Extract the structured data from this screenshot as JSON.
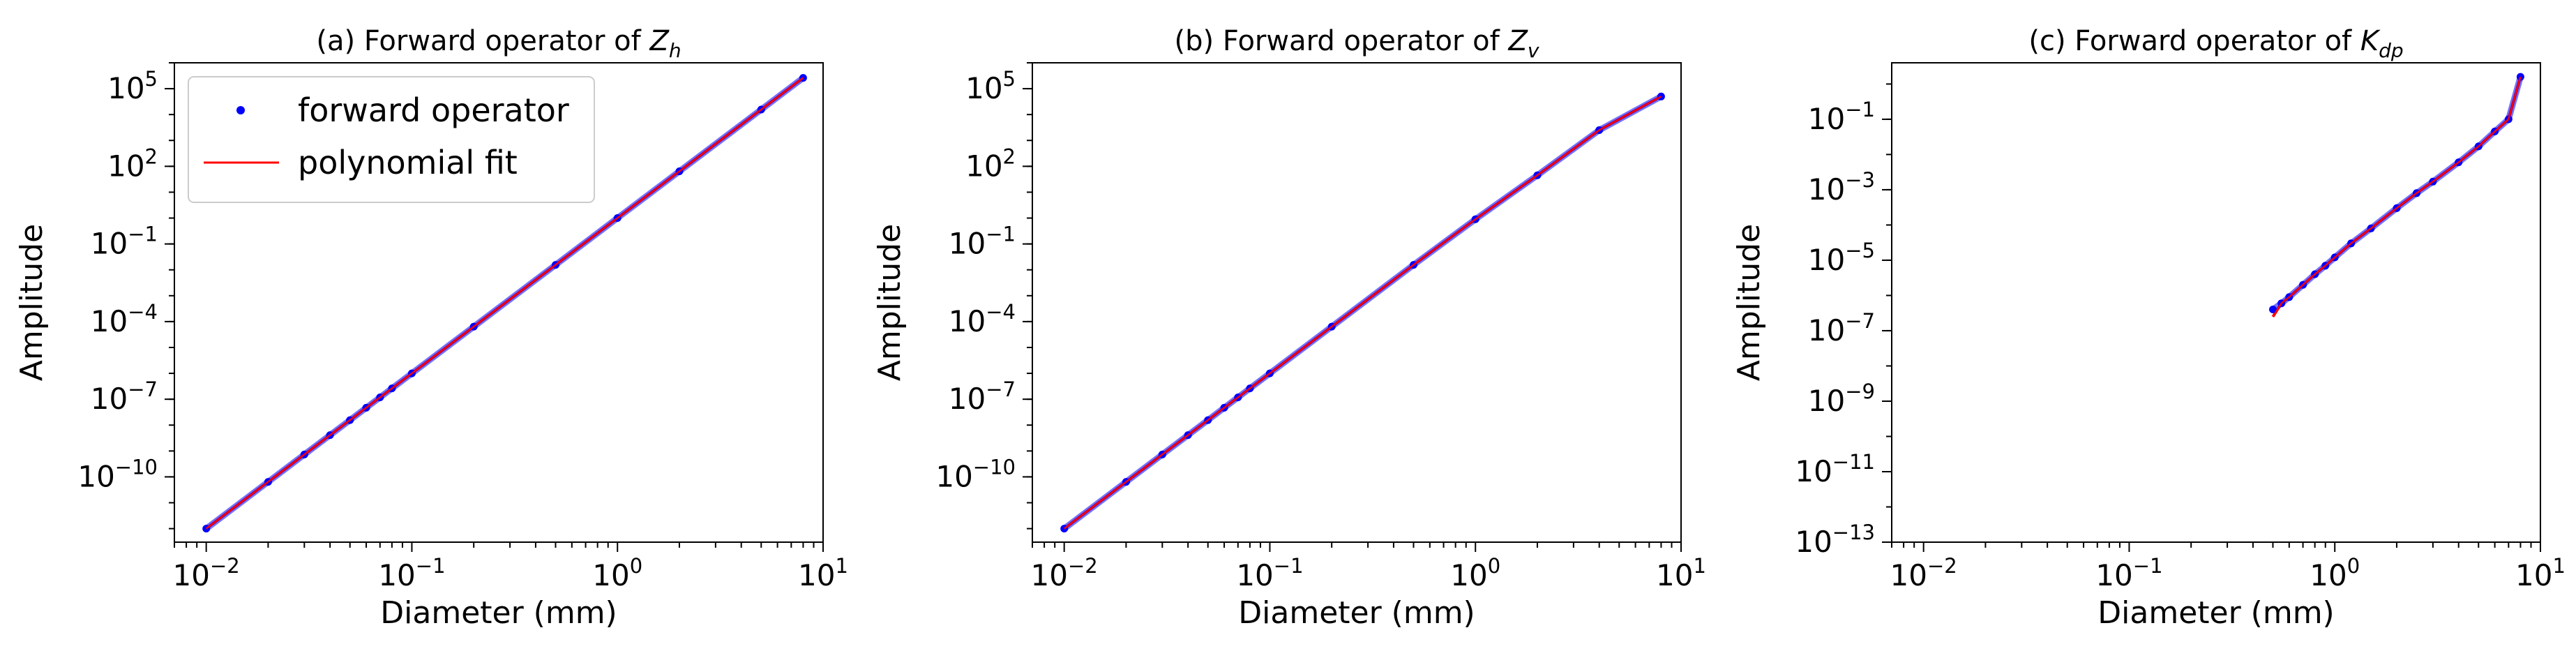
{
  "colors": {
    "marker": "#0000ff",
    "fit_line": "#ff0000",
    "axes": "#000000",
    "background": "#ffffff"
  },
  "legend": {
    "placement": "top-left",
    "entries": [
      {
        "label": "forward operator",
        "style": "dots",
        "color": "#0000ff"
      },
      {
        "label": "polynomial fit",
        "style": "line",
        "color": "#ff0000"
      }
    ]
  },
  "chart_data": [
    {
      "type": "scatter",
      "title": {
        "prefix": "(a) Forward operator of ",
        "symbol": "Z",
        "subscript": "h"
      },
      "xlabel": "Diameter (mm)",
      "ylabel": "Amplitude",
      "xscale": "log",
      "yscale": "log",
      "xlim": [
        0.007,
        10
      ],
      "ylim": [
        3e-13,
        1000000.0
      ],
      "xticks": [
        {
          "base": "10",
          "exp": "−2",
          "value": 0.01
        },
        {
          "base": "10",
          "exp": "−1",
          "value": 0.1
        },
        {
          "base": "10",
          "exp": "0",
          "value": 1
        },
        {
          "base": "10",
          "exp": "1",
          "value": 10
        }
      ],
      "yticks": [
        {
          "base": "10",
          "exp": "−10",
          "value": 1e-10
        },
        {
          "base": "10",
          "exp": "−7",
          "value": 1e-07
        },
        {
          "base": "10",
          "exp": "−4",
          "value": 0.0001
        },
        {
          "base": "10",
          "exp": "−1",
          "value": 0.1
        },
        {
          "base": "10",
          "exp": "2",
          "value": 100
        },
        {
          "base": "10",
          "exp": "5",
          "value": 100000
        }
      ],
      "grid": false,
      "legend_shown": true,
      "series": [
        {
          "name": "forward operator",
          "style": "dots",
          "x": [
            0.01,
            0.02,
            0.03,
            0.04,
            0.05,
            0.06,
            0.07,
            0.08,
            0.1,
            0.2,
            0.5,
            1,
            2,
            5,
            8
          ],
          "y": [
            1e-12,
            6.4e-11,
            7.3e-10,
            4.1e-09,
            1.56e-08,
            4.67e-08,
            1.18e-07,
            2.62e-07,
            1e-06,
            6.4e-05,
            0.0156,
            1,
            64,
            15600,
            262000
          ]
        },
        {
          "name": "polynomial fit",
          "style": "line",
          "x": [
            0.01,
            0.02,
            0.03,
            0.04,
            0.05,
            0.06,
            0.07,
            0.08,
            0.1,
            0.2,
            0.5,
            1,
            2,
            5,
            8
          ],
          "y": [
            1e-12,
            6.4e-11,
            7.3e-10,
            4.1e-09,
            1.56e-08,
            4.67e-08,
            1.18e-07,
            2.62e-07,
            1e-06,
            6.4e-05,
            0.0156,
            1,
            64,
            15600,
            262000
          ]
        }
      ]
    },
    {
      "type": "scatter",
      "title": {
        "prefix": "(b) Forward operator of ",
        "symbol": "Z",
        "subscript": "v"
      },
      "xlabel": "Diameter (mm)",
      "ylabel": "Amplitude",
      "xscale": "log",
      "yscale": "log",
      "xlim": [
        0.007,
        10
      ],
      "ylim": [
        3e-13,
        1000000.0
      ],
      "xticks": [
        {
          "base": "10",
          "exp": "−2",
          "value": 0.01
        },
        {
          "base": "10",
          "exp": "−1",
          "value": 0.1
        },
        {
          "base": "10",
          "exp": "0",
          "value": 1
        },
        {
          "base": "10",
          "exp": "1",
          "value": 10
        }
      ],
      "yticks": [
        {
          "base": "10",
          "exp": "−10",
          "value": 1e-10
        },
        {
          "base": "10",
          "exp": "−7",
          "value": 1e-07
        },
        {
          "base": "10",
          "exp": "−4",
          "value": 0.0001
        },
        {
          "base": "10",
          "exp": "−1",
          "value": 0.1
        },
        {
          "base": "10",
          "exp": "2",
          "value": 100
        },
        {
          "base": "10",
          "exp": "5",
          "value": 100000
        }
      ],
      "grid": false,
      "legend_shown": false,
      "series": [
        {
          "name": "forward operator",
          "style": "dots",
          "x": [
            0.01,
            0.02,
            0.03,
            0.04,
            0.05,
            0.06,
            0.07,
            0.08,
            0.1,
            0.2,
            0.5,
            1,
            2,
            4,
            8
          ],
          "y": [
            1e-12,
            6.4e-11,
            7.3e-10,
            4.1e-09,
            1.56e-08,
            4.67e-08,
            1.18e-07,
            2.62e-07,
            1e-06,
            6.4e-05,
            0.0156,
            0.9,
            45,
            2500,
            50000
          ]
        },
        {
          "name": "polynomial fit",
          "style": "line",
          "x": [
            0.01,
            0.02,
            0.03,
            0.04,
            0.05,
            0.06,
            0.07,
            0.08,
            0.1,
            0.2,
            0.5,
            1,
            2,
            4,
            8
          ],
          "y": [
            1e-12,
            6.4e-11,
            7.3e-10,
            4.1e-09,
            1.56e-08,
            4.67e-08,
            1.18e-07,
            2.62e-07,
            1e-06,
            6.4e-05,
            0.0156,
            0.9,
            45,
            2500,
            50000
          ]
        }
      ]
    },
    {
      "type": "scatter",
      "title": {
        "prefix": "(c) Forward operator of ",
        "symbol": "K",
        "subscript": "dp"
      },
      "xlabel": "Diameter (mm)",
      "ylabel": "Amplitude",
      "xscale": "log",
      "yscale": "log",
      "xlim": [
        0.007,
        10
      ],
      "ylim": [
        1e-13,
        4
      ],
      "xticks": [
        {
          "base": "10",
          "exp": "−2",
          "value": 0.01
        },
        {
          "base": "10",
          "exp": "−1",
          "value": 0.1
        },
        {
          "base": "10",
          "exp": "0",
          "value": 1
        },
        {
          "base": "10",
          "exp": "1",
          "value": 10
        }
      ],
      "yticks": [
        {
          "base": "10",
          "exp": "−13",
          "value": 1e-13
        },
        {
          "base": "10",
          "exp": "−11",
          "value": 1e-11
        },
        {
          "base": "10",
          "exp": "−9",
          "value": 1e-09
        },
        {
          "base": "10",
          "exp": "−7",
          "value": 1e-07
        },
        {
          "base": "10",
          "exp": "−5",
          "value": 1e-05
        },
        {
          "base": "10",
          "exp": "−3",
          "value": 0.001
        },
        {
          "base": "10",
          "exp": "−1",
          "value": 0.1
        }
      ],
      "grid": false,
      "legend_shown": false,
      "series": [
        {
          "name": "forward operator",
          "style": "dots",
          "x": [
            0.5,
            0.55,
            0.6,
            0.7,
            0.8,
            0.9,
            1.0,
            1.2,
            1.5,
            2,
            2.5,
            3,
            4,
            5,
            6,
            7,
            8
          ],
          "y": [
            4e-07,
            6e-07,
            9e-07,
            2e-06,
            4e-06,
            7e-06,
            1.2e-05,
            3e-05,
            8e-05,
            0.0003,
            0.0008,
            0.0017,
            0.006,
            0.017,
            0.045,
            0.1,
            1.6
          ]
        },
        {
          "name": "polynomial fit",
          "style": "line",
          "x": [
            0.5,
            0.55,
            0.6,
            0.7,
            0.8,
            0.9,
            1.0,
            1.2,
            1.5,
            2,
            2.5,
            3,
            4,
            5,
            6,
            7,
            8
          ],
          "y": [
            2.5e-07,
            6e-07,
            9e-07,
            2e-06,
            4e-06,
            7e-06,
            1.2e-05,
            3e-05,
            8e-05,
            0.0003,
            0.0008,
            0.0017,
            0.006,
            0.017,
            0.045,
            0.1,
            1.6
          ]
        }
      ]
    }
  ]
}
